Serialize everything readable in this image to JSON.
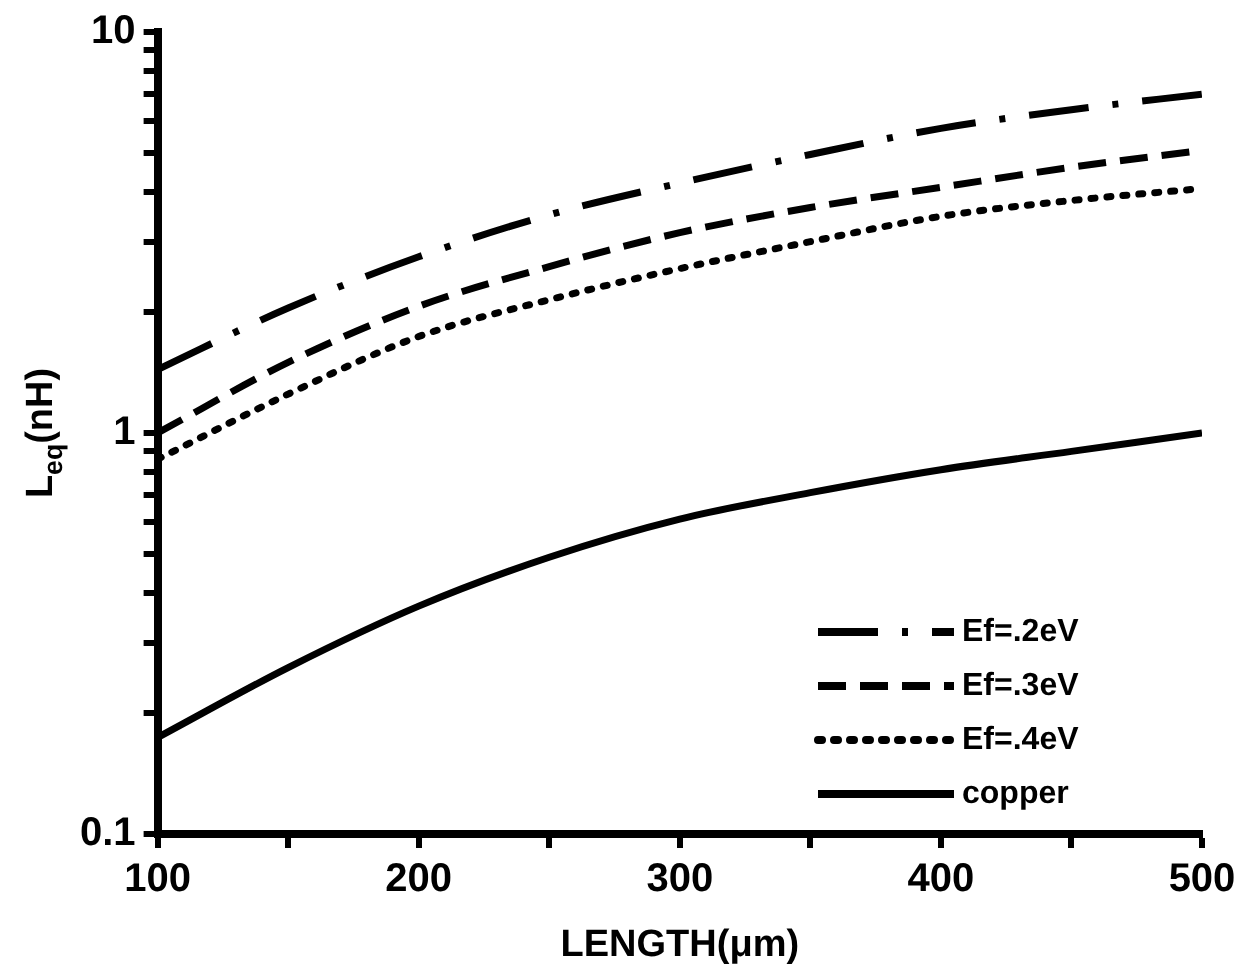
{
  "chart_data": {
    "type": "line",
    "xlabel": "LENGTH(μm)",
    "ylabel": "L$_{eq}$(nH)",
    "log": "y",
    "grid": false,
    "legend": "bottom right",
    "marker": "none",
    "x": [
      100,
      150,
      200,
      250,
      300,
      350,
      400,
      450,
      500
    ],
    "xlim": [
      100,
      500
    ],
    "xticks": [
      100,
      {
        "value": 150,
        "label": null
      },
      200,
      {
        "value": 250,
        "label": null
      },
      300,
      {
        "value": 350,
        "label": null
      },
      400,
      {
        "value": 450,
        "label": null
      },
      500
    ],
    "ylim": [
      0.1,
      10
    ],
    "yticks": [
      0.1,
      {
        "value": 0.2,
        "label": null
      },
      {
        "value": 0.3,
        "label": null
      },
      {
        "value": 0.4,
        "label": null
      },
      {
        "value": 0.5,
        "label": null
      },
      {
        "value": 0.6,
        "label": null
      },
      {
        "value": 0.7,
        "label": null
      },
      {
        "value": 0.8,
        "label": null
      },
      {
        "value": 0.9,
        "label": null
      },
      1,
      {
        "value": 2,
        "label": null
      },
      {
        "value": 3,
        "label": null
      },
      {
        "value": 4,
        "label": null
      },
      {
        "value": 5,
        "label": null
      },
      {
        "value": 6,
        "label": null
      },
      {
        "value": 7,
        "label": null
      },
      {
        "value": 8,
        "label": null
      },
      {
        "value": 9,
        "label": null
      },
      10
    ],
    "series": [
      {
        "name": "Ef=.2eV",
        "color": "#000000",
        "line_style": "dashdot",
        "values": [
          1.44,
          2.05,
          2.75,
          3.5,
          4.2,
          4.95,
          5.75,
          6.4,
          7.0
        ]
      },
      {
        "name": "Ef=.3eV",
        "color": "#000000",
        "line_style": "dashed",
        "values": [
          1.0,
          1.5,
          2.07,
          2.6,
          3.16,
          3.65,
          4.1,
          4.6,
          5.07
        ]
      },
      {
        "name": "Ef=.4eV",
        "color": "#000000",
        "line_style": "dotted",
        "values": [
          0.86,
          1.25,
          1.74,
          2.15,
          2.57,
          3.0,
          3.47,
          3.8,
          4.07
        ]
      },
      {
        "name": "copper",
        "color": "#000000",
        "line_style": "solid",
        "values": [
          0.174,
          0.26,
          0.37,
          0.49,
          0.61,
          0.71,
          0.81,
          0.9,
          1.0
        ]
      }
    ]
  }
}
